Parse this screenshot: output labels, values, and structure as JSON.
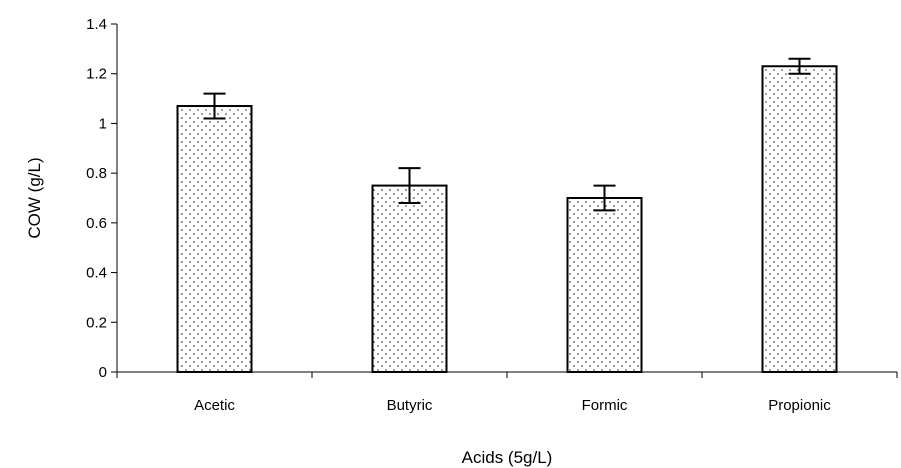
{
  "chart_data": {
    "type": "bar",
    "title": "",
    "xlabel": "Acids (5g/L)",
    "ylabel": "COW (g/L)",
    "categories": [
      "Acetic",
      "Butyric",
      "Formic",
      "Propionic"
    ],
    "values": [
      1.07,
      0.75,
      0.7,
      1.23
    ],
    "error_bars": [
      0.05,
      0.07,
      0.05,
      0.03
    ],
    "ylim": [
      0,
      1.4
    ],
    "yticks": [
      "0",
      "0.2",
      "0.4",
      "0.6",
      "0.8",
      "1",
      "1.2",
      "1.4"
    ],
    "grid": false,
    "legend": "none",
    "bar_fill": "dotted-pattern",
    "bar_color": "#ffffff",
    "dot_color": "#555555",
    "outline_color": "#000000"
  }
}
